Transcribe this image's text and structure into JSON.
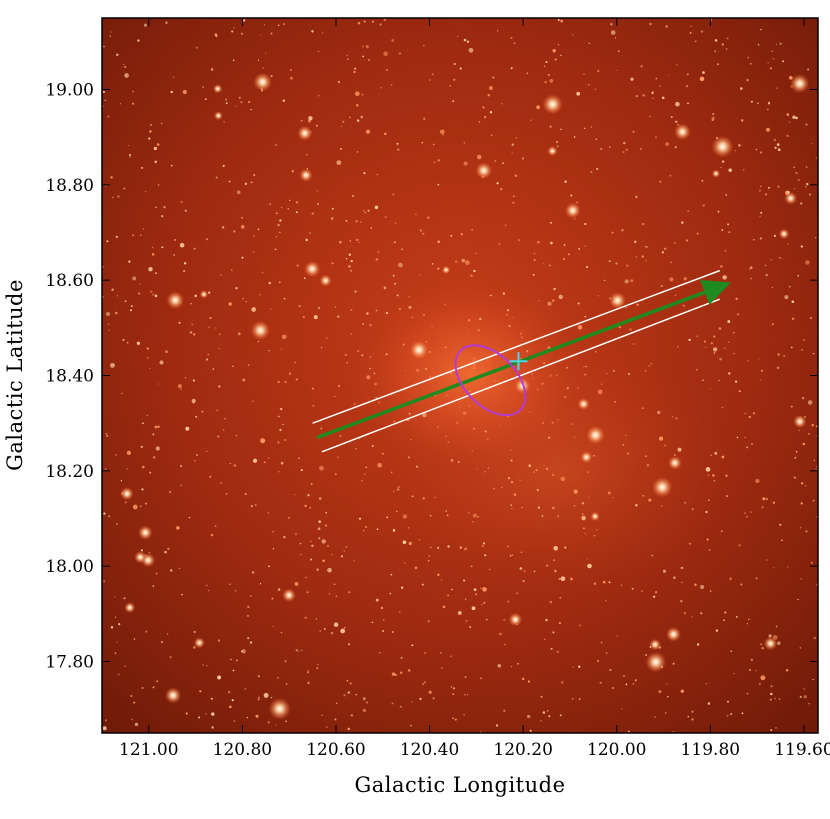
{
  "chart_data": {
    "type": "image",
    "xlabel": "Galactic Longitude",
    "ylabel": "Galactic Latitude",
    "xlim": [
      121.1,
      119.57
    ],
    "ylim": [
      17.65,
      19.15
    ],
    "x_ticks": [
      "121.00",
      "120.80",
      "120.60",
      "120.40",
      "120.20",
      "120.00",
      "119.80",
      "119.60"
    ],
    "y_ticks": [
      "17.80",
      "18.00",
      "18.20",
      "18.40",
      "18.60",
      "18.80",
      "19.00"
    ],
    "x_tick_values": [
      121.0,
      120.8,
      120.6,
      120.4,
      120.2,
      120.0,
      119.8,
      119.6
    ],
    "y_tick_values": [
      17.8,
      18.0,
      18.2,
      18.4,
      18.6,
      18.8,
      19.0
    ],
    "image_colormap": "red-heat (infrared sky image)",
    "overlays": {
      "source_marker": {
        "shape": "cross",
        "color": "#4fd6e8",
        "l": 120.21,
        "b": 18.43
      },
      "ellipse": {
        "color": "#b23bd6",
        "center_l": 120.27,
        "center_b": 18.39,
        "semi_major_deg": 0.09,
        "semi_minor_deg": 0.055,
        "tilt_deg": 45
      },
      "motion_arrow": {
        "color": "#1f8a1f",
        "from_l": 120.64,
        "from_b": 18.27,
        "to_l": 119.77,
        "to_b": 18.59
      },
      "error_cone": [
        {
          "color": "#ffffff",
          "from_l": 120.65,
          "from_b": 18.3,
          "to_l": 119.78,
          "to_b": 18.62
        },
        {
          "color": "#ffffff",
          "from_l": 120.63,
          "from_b": 18.24,
          "to_l": 119.78,
          "to_b": 18.56
        }
      ]
    }
  }
}
